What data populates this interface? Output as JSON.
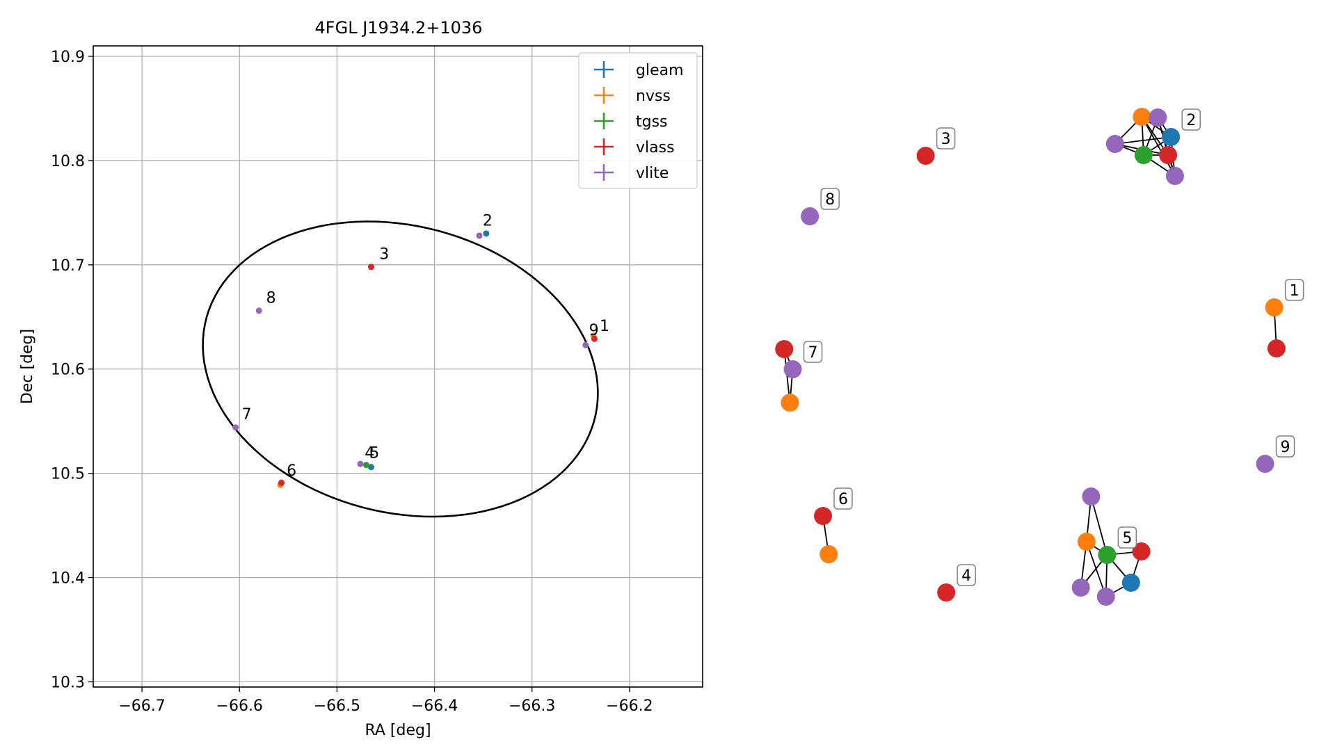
{
  "chart_data": [
    {
      "type": "scatter",
      "title": "4FGL J1934.2+1036",
      "xlabel": "RA [deg]",
      "ylabel": "Dec [deg]",
      "xlim": [
        -66.75,
        -66.125
      ],
      "ylim": [
        10.295,
        10.91
      ],
      "xticks": [
        -66.7,
        -66.6,
        -66.5,
        -66.4,
        -66.3,
        -66.2
      ],
      "xtick_labels": [
        "−66.7",
        "−66.6",
        "−66.5",
        "−66.4",
        "−66.3",
        "−66.2"
      ],
      "yticks": [
        10.3,
        10.4,
        10.5,
        10.6,
        10.7,
        10.8,
        10.9
      ],
      "ytick_labels": [
        "10.3",
        "10.4",
        "10.5",
        "10.6",
        "10.7",
        "10.8",
        "10.9"
      ],
      "grid": true,
      "legend_position": "top-right",
      "series": [
        {
          "name": "gleam",
          "color": "#1f77b4",
          "points": [
            [
              -66.347,
              10.73
            ],
            [
              -66.465,
              10.506
            ]
          ]
        },
        {
          "name": "nvss",
          "color": "#ff7f0e",
          "points": [
            [
              -66.237,
              10.632
            ],
            [
              -66.558,
              10.489
            ]
          ]
        },
        {
          "name": "tgss",
          "color": "#2ca02c",
          "points": [
            [
              -66.47,
              10.508
            ]
          ]
        },
        {
          "name": "vlass",
          "color": "#d62728",
          "points": [
            [
              -66.236,
              10.629
            ],
            [
              -66.465,
              10.698
            ],
            [
              -66.557,
              10.491
            ]
          ]
        },
        {
          "name": "vlite",
          "color": "#9467bd",
          "points": [
            [
              -66.354,
              10.728
            ],
            [
              -66.245,
              10.623
            ],
            [
              -66.58,
              10.656
            ],
            [
              -66.604,
              10.544
            ],
            [
              -66.476,
              10.509
            ]
          ]
        }
      ],
      "ellipse": {
        "center": [
          -66.435,
          10.6
        ],
        "semi_axis_ra": 0.205,
        "semi_axis_dec": 0.138,
        "rotation_deg": -12
      },
      "annotations": [
        {
          "text": "1",
          "x": -66.232,
          "y": 10.634
        },
        {
          "text": "2",
          "x": -66.352,
          "y": 10.735
        },
        {
          "text": "3",
          "x": -66.458,
          "y": 10.703
        },
        {
          "text": "4",
          "x": -66.473,
          "y": 10.512
        },
        {
          "text": "5",
          "x": -66.468,
          "y": 10.512
        },
        {
          "text": "6",
          "x": -66.553,
          "y": 10.495
        },
        {
          "text": "7",
          "x": -66.599,
          "y": 10.549
        },
        {
          "text": "8",
          "x": -66.574,
          "y": 10.661
        },
        {
          "text": "9",
          "x": -66.243,
          "y": 10.63
        }
      ]
    },
    {
      "type": "network",
      "nodes": [
        {
          "id": "n1a",
          "series": "nvss",
          "pos": [
            0.941,
            0.402
          ]
        },
        {
          "id": "n1b",
          "series": "vlass",
          "pos": [
            0.945,
            0.461
          ]
        },
        {
          "id": "n2a",
          "series": "nvss",
          "pos": [
            0.709,
            0.128
          ]
        },
        {
          "id": "n2b",
          "series": "vlite",
          "pos": [
            0.737,
            0.129
          ]
        },
        {
          "id": "n2c",
          "series": "gleam",
          "pos": [
            0.76,
            0.157
          ]
        },
        {
          "id": "n2d",
          "series": "vlite",
          "pos": [
            0.662,
            0.167
          ]
        },
        {
          "id": "n2e",
          "series": "tgss",
          "pos": [
            0.712,
            0.183
          ]
        },
        {
          "id": "n2f",
          "series": "vlass",
          "pos": [
            0.755,
            0.183
          ]
        },
        {
          "id": "n2g",
          "series": "vlite",
          "pos": [
            0.767,
            0.213
          ]
        },
        {
          "id": "n3",
          "series": "vlass",
          "pos": [
            0.33,
            0.184
          ]
        },
        {
          "id": "n8",
          "series": "vlite",
          "pos": [
            0.127,
            0.271
          ]
        },
        {
          "id": "n7a",
          "series": "vlass",
          "pos": [
            0.082,
            0.462
          ]
        },
        {
          "id": "n7b",
          "series": "vlite",
          "pos": [
            0.097,
            0.491
          ]
        },
        {
          "id": "n7c",
          "series": "nvss",
          "pos": [
            0.092,
            0.539
          ]
        },
        {
          "id": "n9",
          "series": "vlite",
          "pos": [
            0.925,
            0.627
          ]
        },
        {
          "id": "n6a",
          "series": "vlass",
          "pos": [
            0.15,
            0.702
          ]
        },
        {
          "id": "n6b",
          "series": "nvss",
          "pos": [
            0.16,
            0.757
          ]
        },
        {
          "id": "n4",
          "series": "vlass",
          "pos": [
            0.366,
            0.812
          ]
        },
        {
          "id": "n5a",
          "series": "vlite",
          "pos": [
            0.62,
            0.674
          ]
        },
        {
          "id": "n5b",
          "series": "nvss",
          "pos": [
            0.612,
            0.739
          ]
        },
        {
          "id": "n5c",
          "series": "tgss",
          "pos": [
            0.648,
            0.758
          ]
        },
        {
          "id": "n5d",
          "series": "vlass",
          "pos": [
            0.708,
            0.753
          ]
        },
        {
          "id": "n5e",
          "series": "gleam",
          "pos": [
            0.69,
            0.798
          ]
        },
        {
          "id": "n5f",
          "series": "vlite",
          "pos": [
            0.602,
            0.805
          ]
        },
        {
          "id": "n5g",
          "series": "vlite",
          "pos": [
            0.646,
            0.818
          ]
        }
      ],
      "edges": [
        [
          "n1a",
          "n1b"
        ],
        [
          "n2a",
          "n2b"
        ],
        [
          "n2a",
          "n2e"
        ],
        [
          "n2a",
          "n2f"
        ],
        [
          "n2a",
          "n2g"
        ],
        [
          "n2a",
          "n2d"
        ],
        [
          "n2a",
          "n2c"
        ],
        [
          "n2b",
          "n2c"
        ],
        [
          "n2b",
          "n2e"
        ],
        [
          "n2b",
          "n2f"
        ],
        [
          "n2b",
          "n2g"
        ],
        [
          "n2c",
          "n2d"
        ],
        [
          "n2c",
          "n2e"
        ],
        [
          "n2c",
          "n2f"
        ],
        [
          "n2c",
          "n2g"
        ],
        [
          "n2d",
          "n2e"
        ],
        [
          "n2d",
          "n2f"
        ],
        [
          "n2e",
          "n2f"
        ],
        [
          "n2e",
          "n2g"
        ],
        [
          "n2f",
          "n2g"
        ],
        [
          "n7a",
          "n7b"
        ],
        [
          "n7a",
          "n7c"
        ],
        [
          "n7b",
          "n7c"
        ],
        [
          "n6a",
          "n6b"
        ],
        [
          "n5a",
          "n5b"
        ],
        [
          "n5a",
          "n5c"
        ],
        [
          "n5b",
          "n5c"
        ],
        [
          "n5b",
          "n5f"
        ],
        [
          "n5b",
          "n5g"
        ],
        [
          "n5c",
          "n5d"
        ],
        [
          "n5c",
          "n5e"
        ],
        [
          "n5c",
          "n5f"
        ],
        [
          "n5c",
          "n5g"
        ],
        [
          "n5d",
          "n5e"
        ],
        [
          "n5e",
          "n5g"
        ]
      ],
      "labels": [
        {
          "text": "1",
          "node": "n1a"
        },
        {
          "text": "2",
          "node": "n2c"
        },
        {
          "text": "3",
          "node": "n3"
        },
        {
          "text": "4",
          "node": "n4"
        },
        {
          "text": "5",
          "node": "n5c"
        },
        {
          "text": "6",
          "node": "n6a"
        },
        {
          "text": "7",
          "node": "n7b"
        },
        {
          "text": "8",
          "node": "n8"
        },
        {
          "text": "9",
          "node": "n9"
        }
      ]
    }
  ]
}
